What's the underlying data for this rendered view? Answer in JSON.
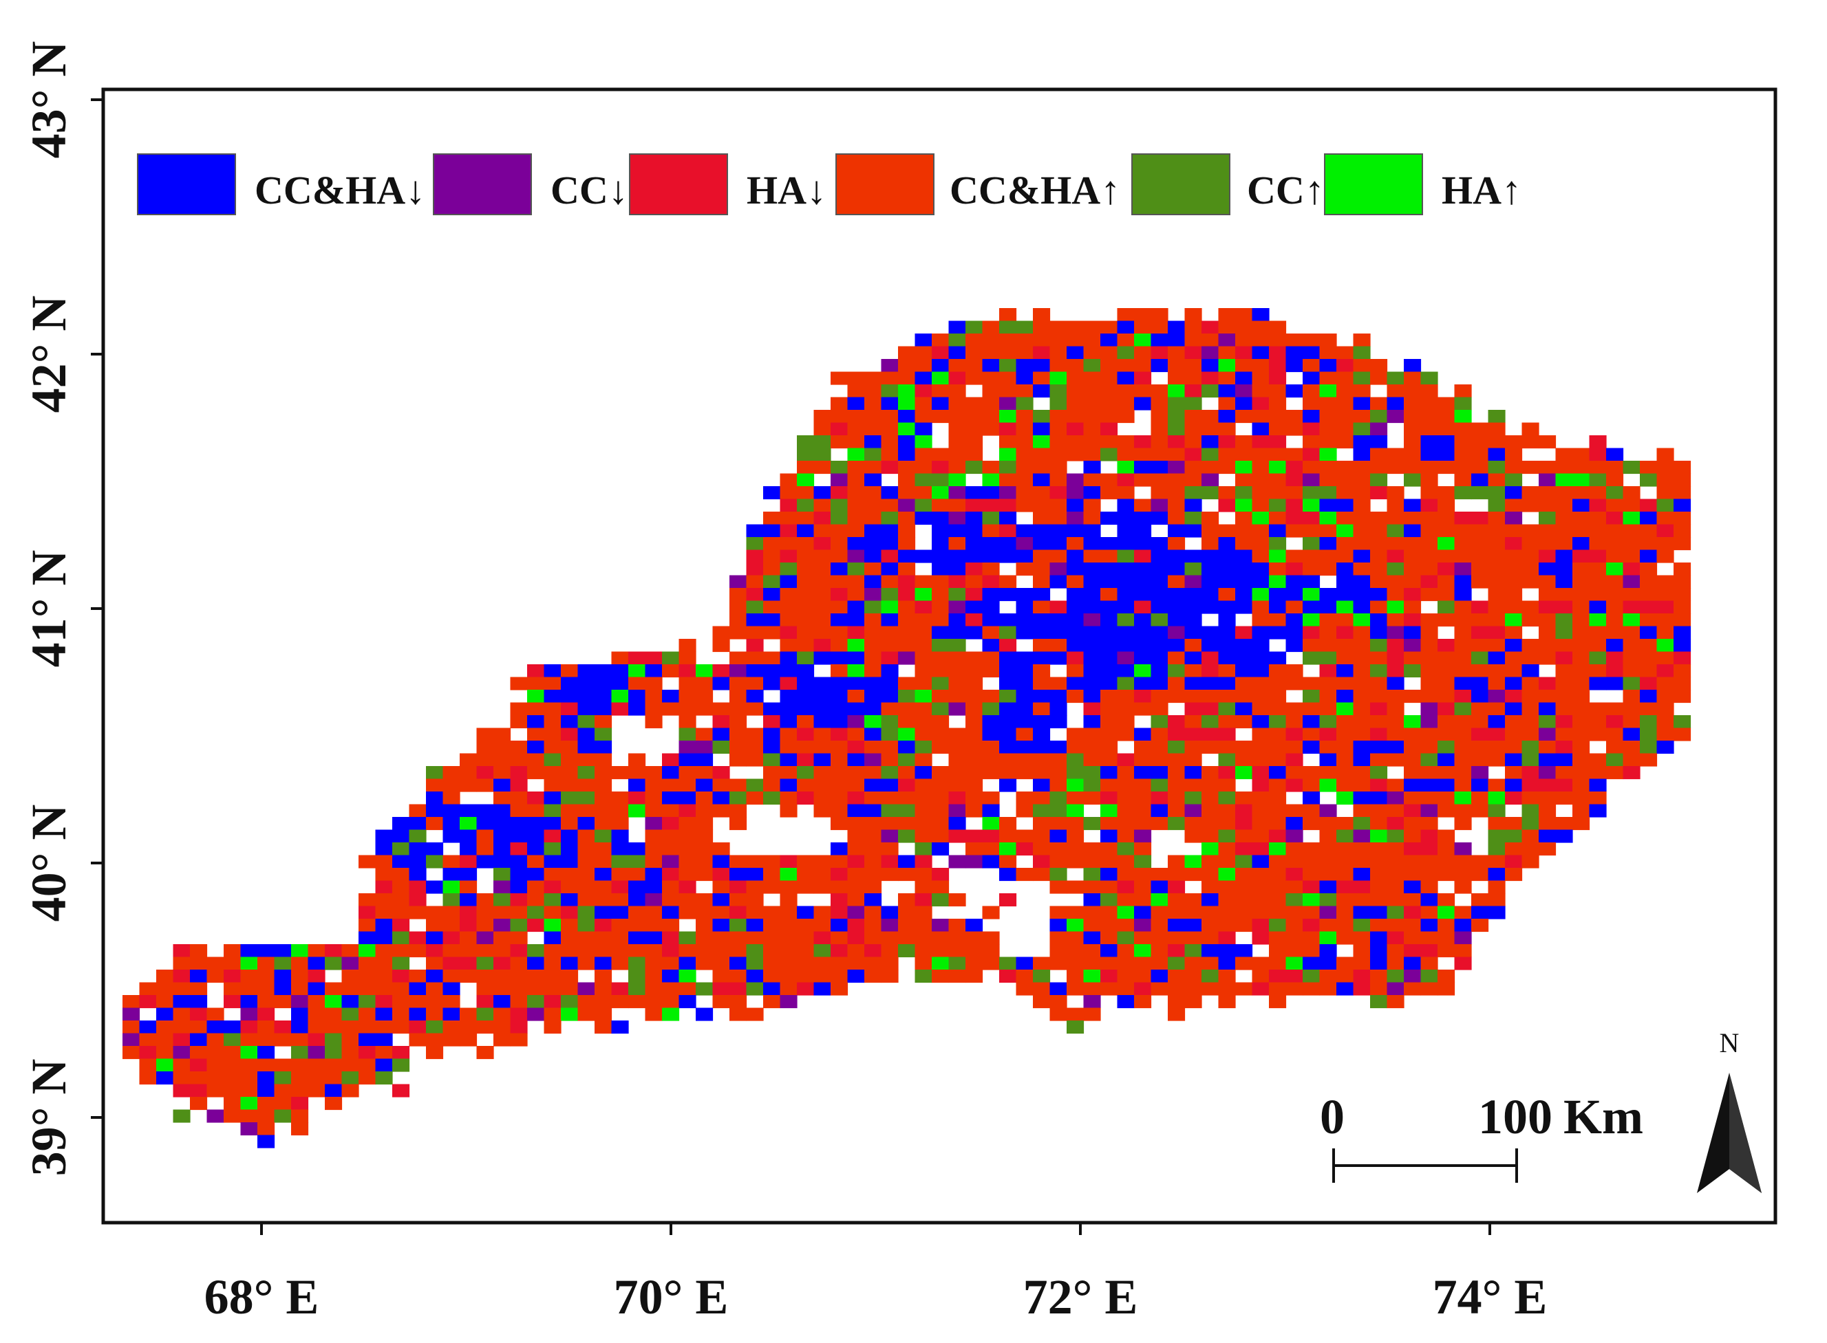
{
  "map": {
    "latitude_labels": [
      {
        "lat": 43,
        "label": "43° N"
      },
      {
        "lat": 42,
        "label": "42° N"
      },
      {
        "lat": 41,
        "label": "41° N"
      },
      {
        "lat": 40,
        "label": "40° N"
      },
      {
        "lat": 39,
        "label": "39° N"
      }
    ],
    "longitude_labels": [
      {
        "lon": 68,
        "label": "68° E"
      },
      {
        "lon": 70,
        "label": "70° E"
      },
      {
        "lon": 72,
        "label": "72° E"
      },
      {
        "lon": 74,
        "label": "74° E"
      }
    ],
    "extent": {
      "lon_min": 67.2,
      "lon_max": 75.2,
      "lat_min": 38.55,
      "lat_max": 43.05
    },
    "legend": [
      {
        "key": "cchad",
        "label": "CC&HA↓",
        "color": "#0000ff"
      },
      {
        "key": "ccd",
        "label": "CC↓",
        "color": "#7b0099"
      },
      {
        "key": "had",
        "label": "HA↓",
        "color": "#e8102a"
      },
      {
        "key": "chai",
        "label": "CC&HA↑",
        "color": "#ee3300"
      },
      {
        "key": "cci",
        "label": "CC↑",
        "color": "#4f8f17"
      },
      {
        "key": "hai",
        "label": "HA↑",
        "color": "#00f000"
      }
    ],
    "scale_bar": {
      "start_label": "0",
      "end_label": "100",
      "unit": "Km",
      "length_km": 100
    },
    "north_arrow": {
      "label": "N",
      "icon": "north-arrow-icon"
    }
  }
}
